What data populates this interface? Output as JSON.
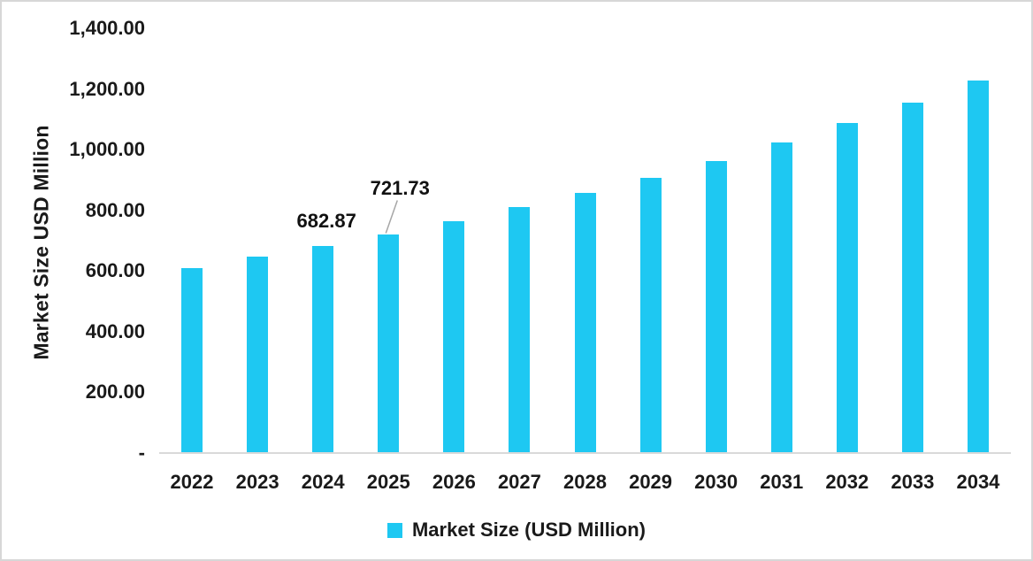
{
  "chart_data": {
    "type": "bar",
    "title": "",
    "xlabel": "",
    "ylabel": "Market Size USD Million",
    "categories": [
      "2022",
      "2023",
      "2024",
      "2025",
      "2026",
      "2027",
      "2028",
      "2029",
      "2030",
      "2031",
      "2032",
      "2033",
      "2034"
    ],
    "series": [
      {
        "name": "Market Size (USD Million)",
        "values": [
          610,
          648,
          682.87,
          721.73,
          765,
          810,
          858,
          908,
          962,
          1023,
          1087,
          1154,
          1229
        ]
      }
    ],
    "data_labels": [
      {
        "category": "2024",
        "text": "682.87",
        "leader_line": false
      },
      {
        "category": "2025",
        "text": "721.73",
        "leader_line": true
      }
    ],
    "ylim": [
      0,
      1400
    ],
    "y_ticks": [
      {
        "value": 1400,
        "label": "1,400.00"
      },
      {
        "value": 1200,
        "label": "1,200.00"
      },
      {
        "value": 1000,
        "label": "1,000.00"
      },
      {
        "value": 800,
        "label": "800.00"
      },
      {
        "value": 600,
        "label": "600.00"
      },
      {
        "value": 400,
        "label": "400.00"
      },
      {
        "value": 200,
        "label": "200.00"
      },
      {
        "value": 0,
        "label": "-"
      }
    ],
    "grid": false,
    "legend_position": "bottom-center",
    "bar_color": "#1ec8f2",
    "baseline_color": "#d9d9d9",
    "leader_line_color": "#a6a6a6"
  },
  "legend": {
    "label": "Market Size (USD Million)"
  }
}
